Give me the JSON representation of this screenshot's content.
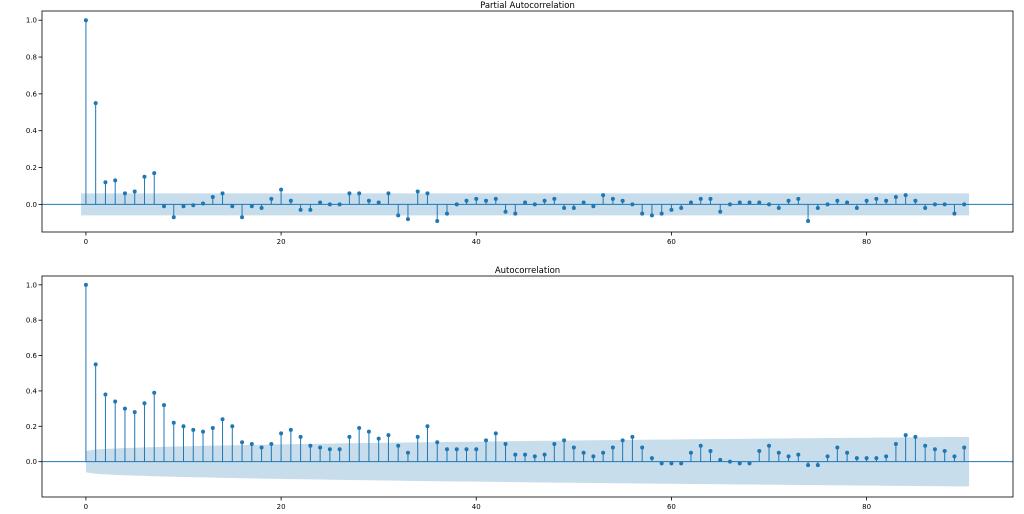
{
  "chart_data": [
    {
      "type": "stem",
      "title": "Partial Autocorrelation",
      "xlim": [
        -4.5,
        95
      ],
      "ylim": [
        -0.15,
        1.05
      ],
      "xticks": [
        0,
        20,
        40,
        60,
        80
      ],
      "yticks": [
        0.0,
        0.2,
        0.4,
        0.6,
        0.8,
        1.0
      ],
      "lags": [
        0,
        1,
        2,
        3,
        4,
        5,
        6,
        7,
        8,
        9,
        10,
        11,
        12,
        13,
        14,
        15,
        16,
        17,
        18,
        19,
        20,
        21,
        22,
        23,
        24,
        25,
        26,
        27,
        28,
        29,
        30,
        31,
        32,
        33,
        34,
        35,
        36,
        37,
        38,
        39,
        40,
        41,
        42,
        43,
        44,
        45,
        46,
        47,
        48,
        49,
        50,
        51,
        52,
        53,
        54,
        55,
        56,
        57,
        58,
        59,
        60,
        61,
        62,
        63,
        64,
        65,
        66,
        67,
        68,
        69,
        70,
        71,
        72,
        73,
        74,
        75,
        76,
        77,
        78,
        79,
        80,
        81,
        82,
        83,
        84,
        85,
        86,
        87,
        88,
        89,
        90
      ],
      "values": [
        1.0,
        0.55,
        0.12,
        0.13,
        0.06,
        0.07,
        0.15,
        0.17,
        -0.01,
        -0.07,
        -0.01,
        -0.005,
        0.005,
        0.04,
        0.06,
        -0.01,
        -0.07,
        -0.01,
        -0.02,
        0.03,
        0.08,
        0.02,
        -0.03,
        -0.03,
        0.01,
        0.0,
        0.0,
        0.06,
        0.06,
        0.02,
        0.01,
        0.06,
        -0.06,
        -0.08,
        0.07,
        0.06,
        -0.09,
        -0.05,
        0.0,
        0.02,
        0.03,
        0.02,
        0.03,
        -0.04,
        -0.05,
        0.01,
        0.0,
        0.02,
        0.03,
        -0.02,
        -0.02,
        0.01,
        -0.01,
        0.05,
        0.03,
        0.02,
        0.0,
        -0.05,
        -0.06,
        -0.05,
        -0.03,
        -0.02,
        0.01,
        0.03,
        0.03,
        -0.04,
        0.0,
        0.01,
        0.01,
        0.01,
        0.0,
        -0.02,
        0.02,
        0.03,
        -0.09,
        -0.02,
        0.0,
        0.02,
        0.01,
        -0.02,
        0.02,
        0.03,
        0.02,
        0.04,
        0.05,
        0.02,
        -0.02,
        0.0,
        0.0,
        -0.05,
        0.0
      ],
      "conf_band": {
        "type": "constant",
        "upper": 0.06,
        "lower": -0.06
      },
      "colors": {
        "series": "#1f77b4"
      }
    },
    {
      "type": "stem",
      "title": "Autocorrelation",
      "xlim": [
        -4.5,
        95
      ],
      "ylim": [
        -0.2,
        1.05
      ],
      "xticks": [
        0,
        20,
        40,
        60,
        80
      ],
      "yticks": [
        0.0,
        0.2,
        0.4,
        0.6,
        0.8,
        1.0
      ],
      "lags": [
        0,
        1,
        2,
        3,
        4,
        5,
        6,
        7,
        8,
        9,
        10,
        11,
        12,
        13,
        14,
        15,
        16,
        17,
        18,
        19,
        20,
        21,
        22,
        23,
        24,
        25,
        26,
        27,
        28,
        29,
        30,
        31,
        32,
        33,
        34,
        35,
        36,
        37,
        38,
        39,
        40,
        41,
        42,
        43,
        44,
        45,
        46,
        47,
        48,
        49,
        50,
        51,
        52,
        53,
        54,
        55,
        56,
        57,
        58,
        59,
        60,
        61,
        62,
        63,
        64,
        65,
        66,
        67,
        68,
        69,
        70,
        71,
        72,
        73,
        74,
        75,
        76,
        77,
        78,
        79,
        80,
        81,
        82,
        83,
        84,
        85,
        86,
        87,
        88,
        89,
        90
      ],
      "values": [
        1.0,
        0.55,
        0.38,
        0.34,
        0.3,
        0.28,
        0.33,
        0.39,
        0.32,
        0.22,
        0.2,
        0.18,
        0.17,
        0.19,
        0.24,
        0.2,
        0.11,
        0.1,
        0.08,
        0.1,
        0.16,
        0.18,
        0.14,
        0.09,
        0.08,
        0.07,
        0.07,
        0.14,
        0.19,
        0.17,
        0.13,
        0.15,
        0.09,
        0.05,
        0.14,
        0.2,
        0.11,
        0.07,
        0.07,
        0.07,
        0.07,
        0.12,
        0.16,
        0.1,
        0.04,
        0.04,
        0.03,
        0.04,
        0.1,
        0.12,
        0.08,
        0.05,
        0.03,
        0.05,
        0.08,
        0.12,
        0.14,
        0.08,
        0.02,
        -0.01,
        -0.01,
        -0.01,
        0.05,
        0.09,
        0.06,
        0.01,
        0.0,
        -0.01,
        -0.01,
        0.06,
        0.09,
        0.05,
        0.03,
        0.04,
        -0.02,
        -0.02,
        0.03,
        0.08,
        0.05,
        0.02,
        0.02,
        0.02,
        0.03,
        0.1,
        0.15,
        0.14,
        0.09,
        0.07,
        0.06,
        0.03,
        0.08
      ],
      "conf_band": {
        "type": "expanding",
        "start": 0.06,
        "end": 0.14
      },
      "colors": {
        "series": "#1f77b4"
      }
    }
  ]
}
